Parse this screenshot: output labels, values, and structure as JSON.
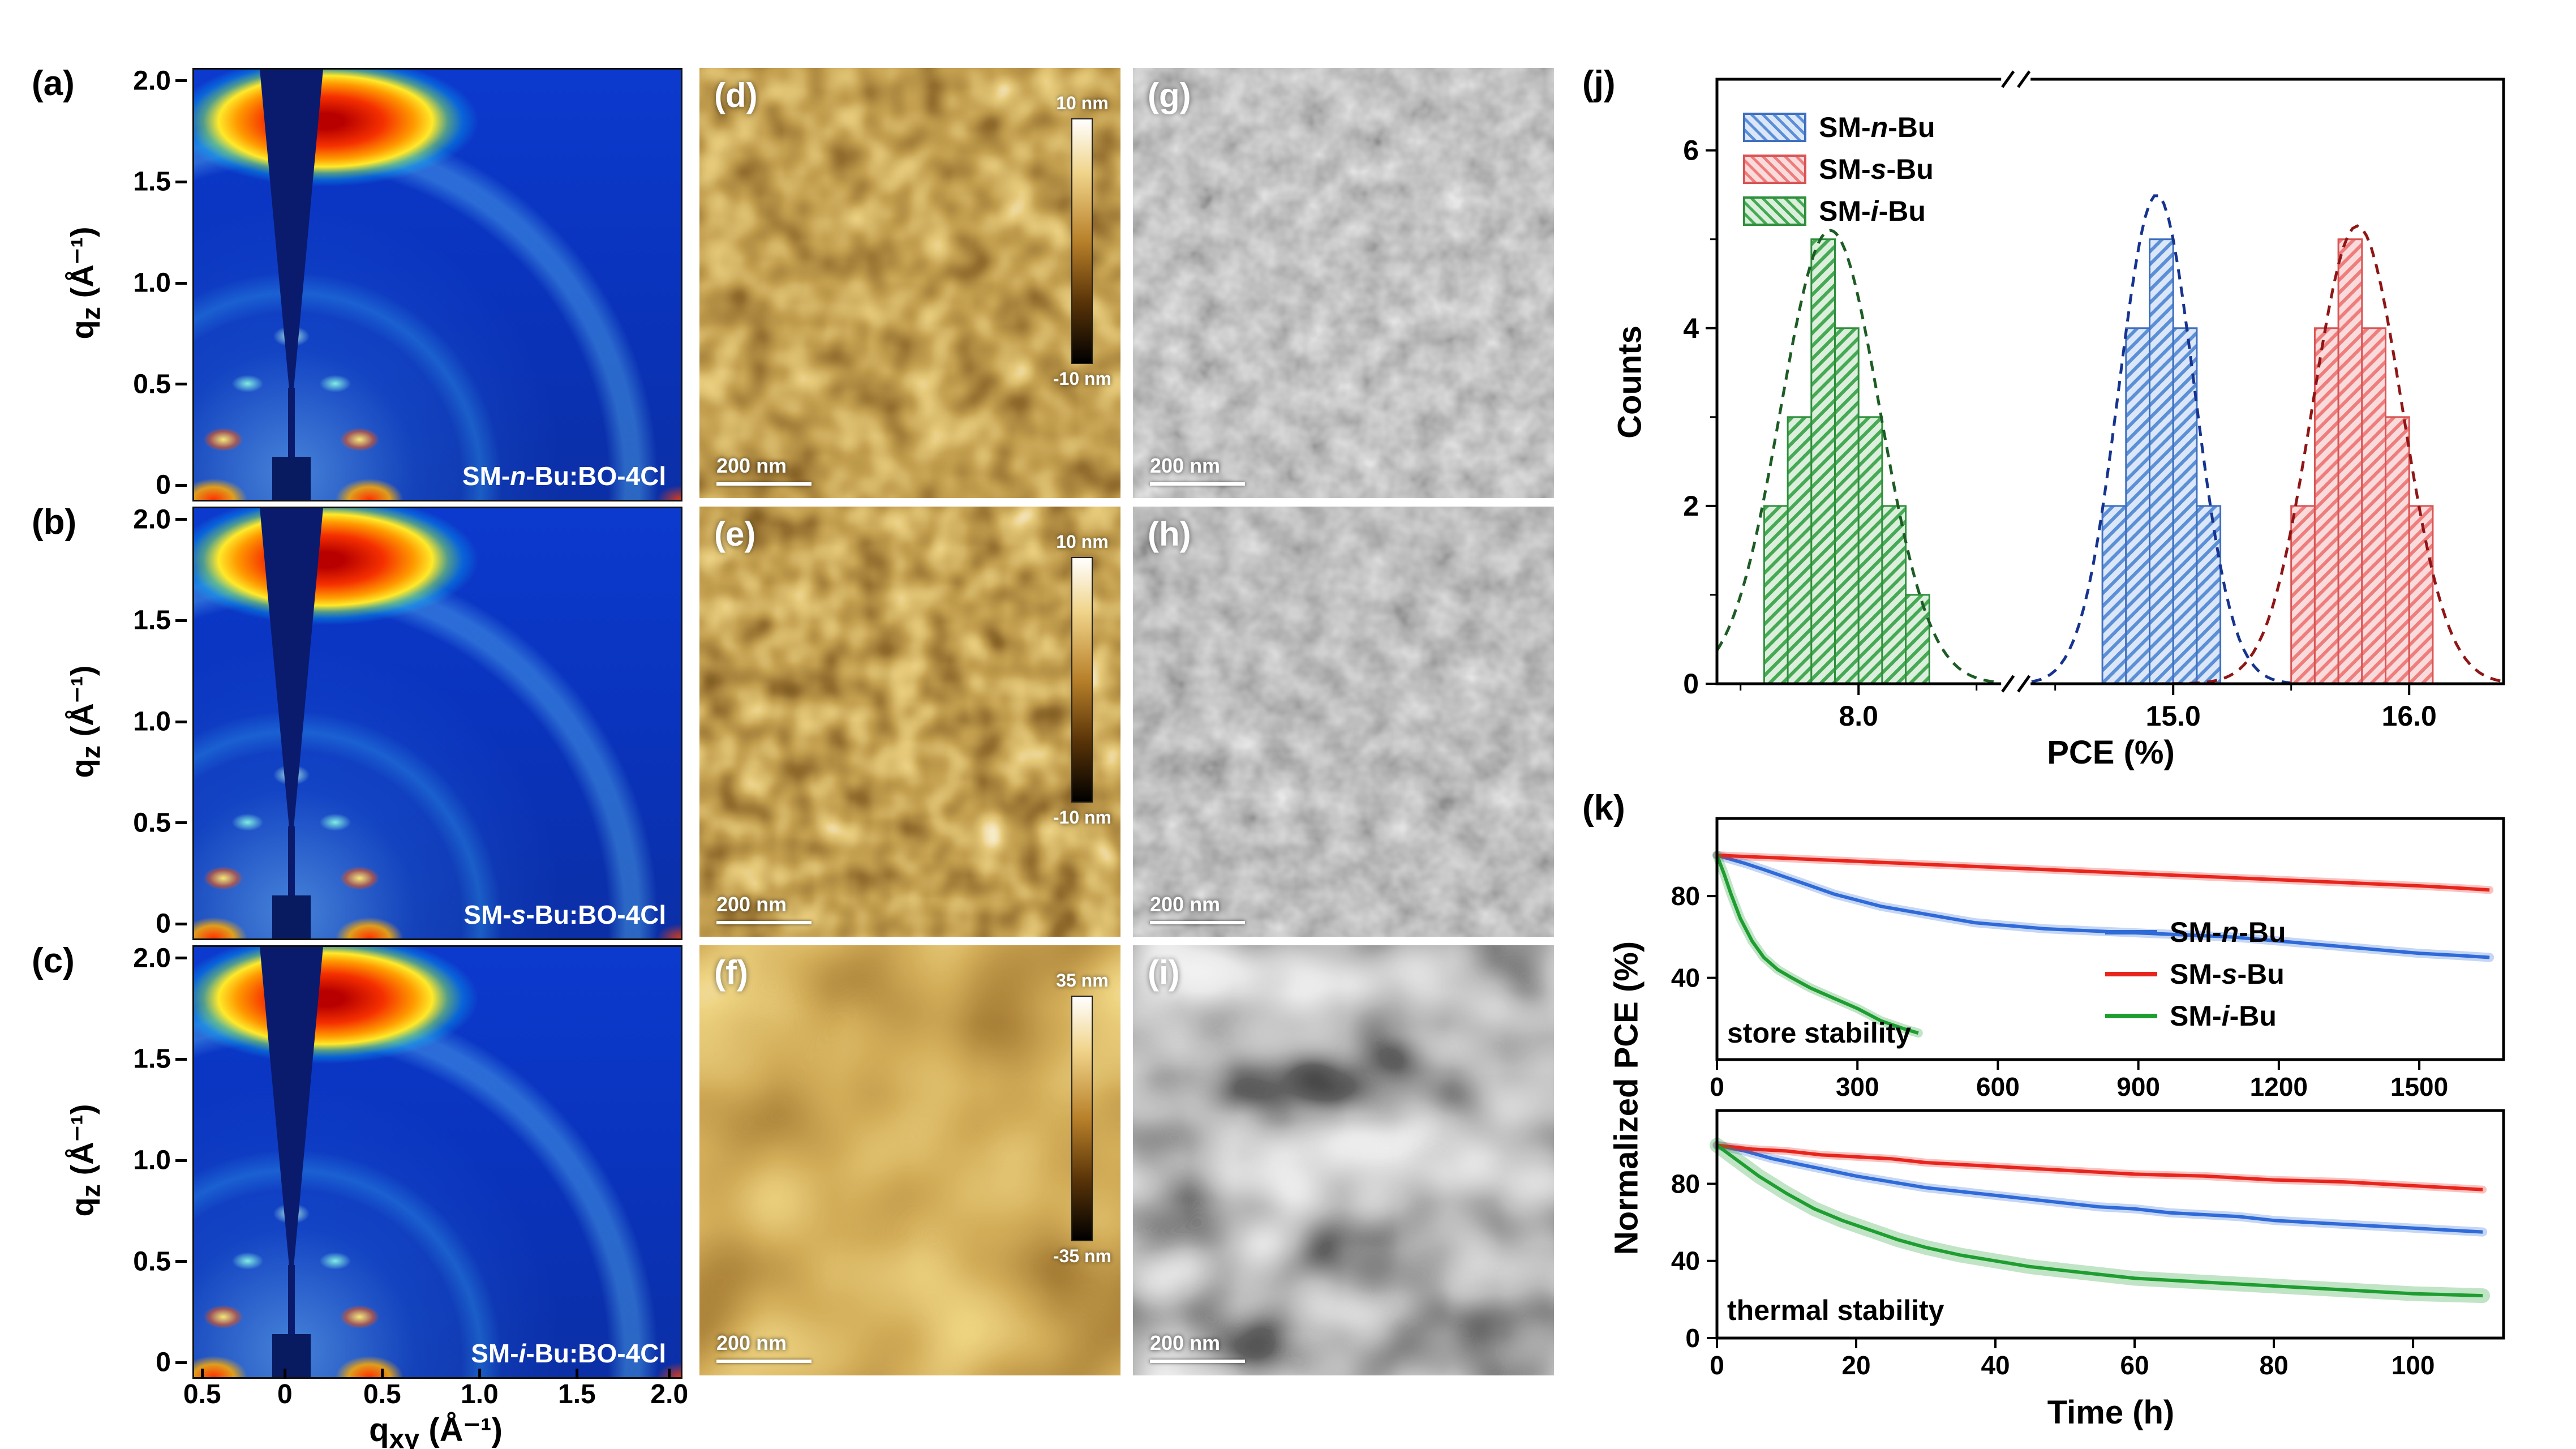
{
  "figure": {
    "panels": {
      "a": {
        "label": "(a)",
        "sample_prefix": "SM-",
        "sample_italic": "n",
        "sample_suffix": "-Bu:BO-4Cl"
      },
      "b": {
        "label": "(b)",
        "sample_prefix": "SM-",
        "sample_italic": "s",
        "sample_suffix": "-Bu:BO-4Cl"
      },
      "c": {
        "label": "(c)",
        "sample_prefix": "SM-",
        "sample_italic": "i",
        "sample_suffix": "-Bu:BO-4Cl"
      },
      "d": {
        "label": "(d)",
        "scalebar": "200 nm",
        "cb_top": "10 nm",
        "cb_bottom": "-10 nm"
      },
      "e": {
        "label": "(e)",
        "scalebar": "200 nm",
        "cb_top": "10 nm",
        "cb_bottom": "-10 nm"
      },
      "f": {
        "label": "(f)",
        "scalebar": "200 nm",
        "cb_top": "35 nm",
        "cb_bottom": "-35 nm"
      },
      "g": {
        "label": "(g)",
        "scalebar": "200 nm"
      },
      "h": {
        "label": "(h)",
        "scalebar": "200 nm"
      },
      "i": {
        "label": "(i)",
        "scalebar": "200 nm"
      },
      "j": {
        "label": "(j)"
      },
      "k": {
        "label": "(k)"
      }
    },
    "giwaxs_axes": {
      "y_main": "q",
      "y_sub": "z",
      "y_unit": " (Å⁻¹)",
      "x_main": "q",
      "x_sub": "xy",
      "x_unit": " (Å⁻¹)",
      "y_ticks": [
        "2.0",
        "1.5",
        "1.0",
        "0.5",
        "0"
      ],
      "x_ticks": [
        "0.5",
        "0",
        "0.5",
        "1.0",
        "1.5",
        "2.0"
      ]
    },
    "panel_j": {
      "xlabel": "PCE (%)",
      "ylabel": "Counts",
      "legend": [
        {
          "prefix": "SM-",
          "italic": "n",
          "suffix": "-Bu",
          "color": "#5b8fd6",
          "bg": "#dbe7f8",
          "border": "#3f6fbf"
        },
        {
          "prefix": "SM-",
          "italic": "s",
          "suffix": "-Bu",
          "color": "#ee7d7d",
          "bg": "#fadbdb",
          "border": "#d95555"
        },
        {
          "prefix": "SM-",
          "italic": "i",
          "suffix": "-Bu",
          "color": "#46a953",
          "bg": "#dcefdd",
          "border": "#2f8f3c"
        }
      ]
    },
    "panel_k": {
      "ylabel": "Normalized PCE (%)",
      "xlabel": "Time (h)",
      "legend": [
        {
          "prefix": "SM-",
          "italic": "n",
          "suffix": "-Bu",
          "color": "#2f6ad9"
        },
        {
          "prefix": "SM-",
          "italic": "s",
          "suffix": "-Bu",
          "color": "#e8251c"
        },
        {
          "prefix": "SM-",
          "italic": "i",
          "suffix": "-Bu",
          "color": "#1e9e30"
        }
      ]
    }
  },
  "chart_data": [
    {
      "id": "hist-pce",
      "type": "bar",
      "title": "",
      "xlabel": "PCE (%)",
      "ylabel": "Counts",
      "ylim": [
        0,
        6.8
      ],
      "yticks": [
        0,
        2,
        4,
        6
      ],
      "yminor": [
        1,
        3,
        5
      ],
      "x_segments": [
        {
          "domain": [
            7.4,
            8.6
          ],
          "range": [
            0,
            0.36
          ]
        },
        {
          "domain": [
            14.4,
            16.4
          ],
          "range": [
            0.4,
            1.0
          ]
        }
      ],
      "break_frac": 0.38,
      "xticks": [
        {
          "v": 8.0,
          "label": "8.0"
        },
        {
          "v": 15.0,
          "label": "15.0"
        },
        {
          "v": 16.0,
          "label": "16.0"
        }
      ],
      "xminor": [
        7.5,
        8.5,
        14.5,
        15.5
      ],
      "series": [
        {
          "name": "SM-i-Bu",
          "bin_start": 7.6,
          "bin_width": 0.1,
          "counts": [
            2,
            3,
            5,
            4,
            3,
            2,
            1
          ],
          "color": "#46a953",
          "fill_bg": "#dcefdd",
          "border": "#2f8f3c",
          "gauss": {
            "mean": 7.88,
            "sigma": 0.21,
            "amp": 5.1
          },
          "gauss_color": "#1d5c24"
        },
        {
          "name": "SM-n-Bu",
          "bin_start": 14.7,
          "bin_width": 0.1,
          "counts": [
            2,
            4,
            5,
            4,
            2
          ],
          "color": "#5b8fd6",
          "fill_bg": "#dbe7f8",
          "border": "#3f6fbf",
          "gauss": {
            "mean": 14.93,
            "sigma": 0.16,
            "amp": 5.5
          },
          "gauss_color": "#16338f"
        },
        {
          "name": "SM-s-Bu",
          "bin_start": 15.5,
          "bin_width": 0.1,
          "counts": [
            2,
            4,
            5,
            4,
            3,
            2
          ],
          "color": "#ee7d7d",
          "fill_bg": "#fadbdb",
          "border": "#d95555",
          "gauss": {
            "mean": 15.78,
            "sigma": 0.19,
            "amp": 5.15
          },
          "gauss_color": "#8f1616"
        }
      ]
    },
    {
      "id": "store-stability",
      "type": "line",
      "annotation": "store stability",
      "xlabel": "",
      "ylabel": "Normalized PCE (%)",
      "xlim": [
        0,
        1680
      ],
      "ylim": [
        0,
        118
      ],
      "xticks": [
        0,
        300,
        600,
        900,
        1200,
        1500
      ],
      "yticks": [
        40,
        80
      ],
      "legend_position": "right",
      "series": [
        {
          "name": "SM-n-Bu",
          "color": "#2f6ad9",
          "band": 16,
          "points": [
            [
              0,
              100
            ],
            [
              30,
              98
            ],
            [
              60,
              96
            ],
            [
              100,
              93
            ],
            [
              150,
              89
            ],
            [
              200,
              85
            ],
            [
              250,
              81
            ],
            [
              300,
              78
            ],
            [
              350,
              75
            ],
            [
              400,
              73
            ],
            [
              450,
              71
            ],
            [
              500,
              69
            ],
            [
              550,
              67
            ],
            [
              600,
              66
            ],
            [
              700,
              64
            ],
            [
              800,
              63
            ],
            [
              900,
              62
            ],
            [
              1000,
              61
            ],
            [
              1100,
              60
            ],
            [
              1200,
              58
            ],
            [
              1300,
              56
            ],
            [
              1400,
              54
            ],
            [
              1500,
              52
            ],
            [
              1580,
              51
            ],
            [
              1650,
              50
            ]
          ]
        },
        {
          "name": "SM-s-Bu",
          "color": "#e8251c",
          "band": 14,
          "points": [
            [
              0,
              100
            ],
            [
              100,
              99
            ],
            [
              200,
              98
            ],
            [
              300,
              97
            ],
            [
              400,
              96
            ],
            [
              500,
              95
            ],
            [
              600,
              94
            ],
            [
              700,
              93
            ],
            [
              800,
              92
            ],
            [
              900,
              91
            ],
            [
              1000,
              90
            ],
            [
              1100,
              89
            ],
            [
              1200,
              88
            ],
            [
              1300,
              87
            ],
            [
              1400,
              86
            ],
            [
              1500,
              85
            ],
            [
              1580,
              84
            ],
            [
              1650,
              83
            ]
          ]
        },
        {
          "name": "SM-i-Bu",
          "color": "#1e9e30",
          "band": 16,
          "points": [
            [
              0,
              100
            ],
            [
              15,
              91
            ],
            [
              30,
              81
            ],
            [
              50,
              69
            ],
            [
              75,
              58
            ],
            [
              100,
              50
            ],
            [
              130,
              44
            ],
            [
              160,
              40
            ],
            [
              200,
              35
            ],
            [
              250,
              30
            ],
            [
              300,
              25
            ],
            [
              350,
              19
            ],
            [
              400,
              15
            ],
            [
              430,
              13
            ]
          ]
        }
      ]
    },
    {
      "id": "thermal-stability",
      "type": "line",
      "annotation": "thermal stability",
      "xlabel": "Time (h)",
      "ylabel": "Normalized PCE (%)",
      "xlim": [
        0,
        113
      ],
      "ylim": [
        0,
        118
      ],
      "xticks": [
        0,
        20,
        40,
        60,
        80,
        100
      ],
      "yticks": [
        0,
        40,
        80
      ],
      "series": [
        {
          "name": "SM-n-Bu",
          "color": "#2f6ad9",
          "band": 16,
          "points": [
            [
              0,
              100
            ],
            [
              4,
              97
            ],
            [
              8,
              93
            ],
            [
              12,
              90
            ],
            [
              16,
              87
            ],
            [
              20,
              84
            ],
            [
              25,
              81
            ],
            [
              30,
              78
            ],
            [
              35,
              76
            ],
            [
              40,
              74
            ],
            [
              45,
              72
            ],
            [
              50,
              70
            ],
            [
              55,
              68
            ],
            [
              60,
              67
            ],
            [
              65,
              65
            ],
            [
              70,
              64
            ],
            [
              75,
              63
            ],
            [
              80,
              61
            ],
            [
              85,
              60
            ],
            [
              90,
              59
            ],
            [
              95,
              58
            ],
            [
              100,
              57
            ],
            [
              105,
              56
            ],
            [
              110,
              55
            ]
          ]
        },
        {
          "name": "SM-s-Bu",
          "color": "#e8251c",
          "band": 14,
          "points": [
            [
              0,
              100
            ],
            [
              5,
              98
            ],
            [
              10,
              97
            ],
            [
              15,
              95
            ],
            [
              20,
              94
            ],
            [
              25,
              93
            ],
            [
              30,
              91
            ],
            [
              35,
              90
            ],
            [
              40,
              89
            ],
            [
              45,
              88
            ],
            [
              50,
              87
            ],
            [
              60,
              85
            ],
            [
              70,
              84
            ],
            [
              80,
              82
            ],
            [
              90,
              81
            ],
            [
              100,
              79
            ],
            [
              105,
              78
            ],
            [
              110,
              77
            ]
          ]
        },
        {
          "name": "SM-i-Bu",
          "color": "#1e9e30",
          "band": 26,
          "points": [
            [
              0,
              100
            ],
            [
              3,
              92
            ],
            [
              6,
              84
            ],
            [
              10,
              75
            ],
            [
              14,
              67
            ],
            [
              18,
              61
            ],
            [
              22,
              56
            ],
            [
              26,
              51
            ],
            [
              30,
              47
            ],
            [
              35,
              43
            ],
            [
              40,
              40
            ],
            [
              45,
              37
            ],
            [
              50,
              35
            ],
            [
              55,
              33
            ],
            [
              60,
              31
            ],
            [
              70,
              29
            ],
            [
              80,
              27
            ],
            [
              90,
              25
            ],
            [
              100,
              23
            ],
            [
              110,
              22
            ]
          ]
        }
      ]
    }
  ]
}
